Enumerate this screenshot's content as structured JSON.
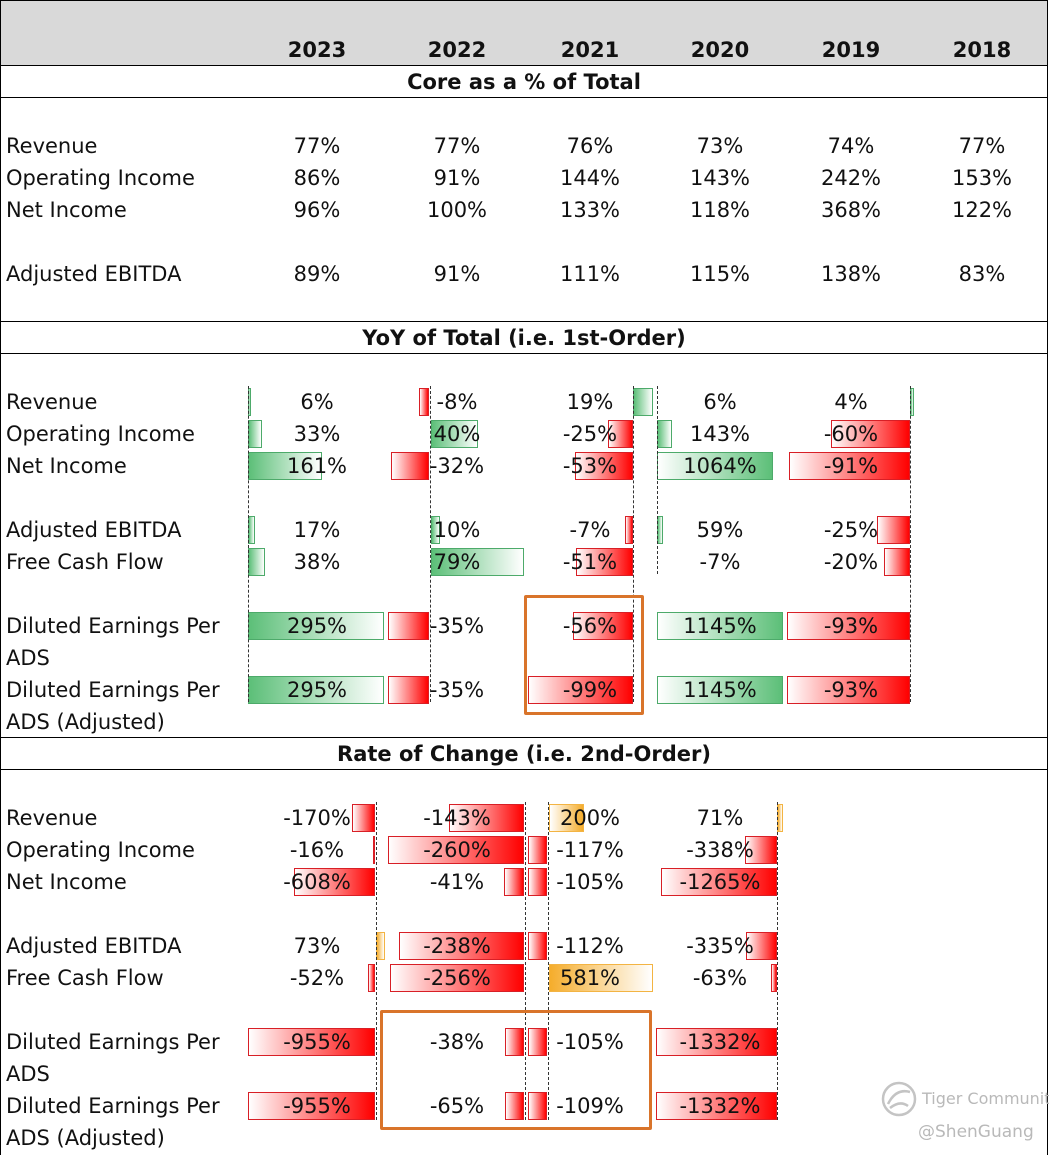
{
  "columns": [
    "2023",
    "2022",
    "2021",
    "2020",
    "2019",
    "2018"
  ],
  "sections": [
    {
      "title": "Core as a % of Total",
      "rows": [
        {
          "label": "Revenue",
          "values": [
            "77%",
            "77%",
            "76%",
            "73%",
            "74%",
            "77%"
          ]
        },
        {
          "label": "Operating Income",
          "values": [
            "86%",
            "91%",
            "144%",
            "143%",
            "242%",
            "153%"
          ]
        },
        {
          "label": "Net Income",
          "values": [
            "96%",
            "100%",
            "133%",
            "118%",
            "368%",
            "122%"
          ]
        },
        {
          "label": "Adjusted EBITDA",
          "values": [
            "89%",
            "91%",
            "111%",
            "115%",
            "138%",
            "83%"
          ]
        }
      ]
    },
    {
      "title": "YoY of Total (i.e. 1st-Order)",
      "rows": [
        {
          "label": "Revenue",
          "values": [
            "6%",
            "-8%",
            "19%",
            "6%",
            "4%"
          ]
        },
        {
          "label": "Operating Income",
          "values": [
            "33%",
            "40%",
            "-25%",
            "143%",
            "-60%"
          ]
        },
        {
          "label": "Net Income",
          "values": [
            "161%",
            "-32%",
            "-53%",
            "1064%",
            "-91%"
          ]
        },
        {
          "label": "Adjusted EBITDA",
          "values": [
            "17%",
            "10%",
            "-7%",
            "59%",
            "-25%"
          ]
        },
        {
          "label": "Free Cash Flow",
          "values": [
            "38%",
            "79%",
            "-51%",
            "-7%",
            "-20%"
          ]
        },
        {
          "label": "Diluted Earnings Per ADS",
          "values": [
            "295%",
            "-35%",
            "-56%",
            "1145%",
            "-93%"
          ]
        },
        {
          "label": "Diluted Earnings Per ADS (Adjusted)",
          "values": [
            "295%",
            "-35%",
            "-99%",
            "1145%",
            "-93%"
          ]
        }
      ]
    },
    {
      "title": "Rate of Change (i.e. 2nd-Order)",
      "rows": [
        {
          "label": "Revenue",
          "values": [
            "-170%",
            "-143%",
            "200%",
            "71%"
          ]
        },
        {
          "label": "Operating Income",
          "values": [
            "-16%",
            "-260%",
            "-117%",
            "-338%"
          ]
        },
        {
          "label": "Net Income",
          "values": [
            "-608%",
            "-41%",
            "-105%",
            "-1265%"
          ]
        },
        {
          "label": "Adjusted EBITDA",
          "values": [
            "73%",
            "-238%",
            "-112%",
            "-335%"
          ]
        },
        {
          "label": "Free Cash Flow",
          "values": [
            "-52%",
            "-256%",
            "581%",
            "-63%"
          ]
        },
        {
          "label": "Diluted Earnings Per ADS",
          "values": [
            "-955%",
            "-38%",
            "-105%",
            "-1332%"
          ]
        },
        {
          "label": "Diluted Earnings Per ADS (Adjusted)",
          "values": [
            "-955%",
            "-65%",
            "-109%",
            "-1332%"
          ]
        }
      ]
    }
  ],
  "colors": {
    "header_band": "#d9d9d9",
    "positive_bar": "#5cbf78",
    "negative_bar": "#ff0000",
    "second_order_positive_bar": "#f5ad2c",
    "highlight_box": "#d9742a"
  },
  "watermark": {
    "brand": "Tiger Community",
    "handle": "@ShenGuang",
    "icon": "tiger-community-logo-icon"
  }
}
